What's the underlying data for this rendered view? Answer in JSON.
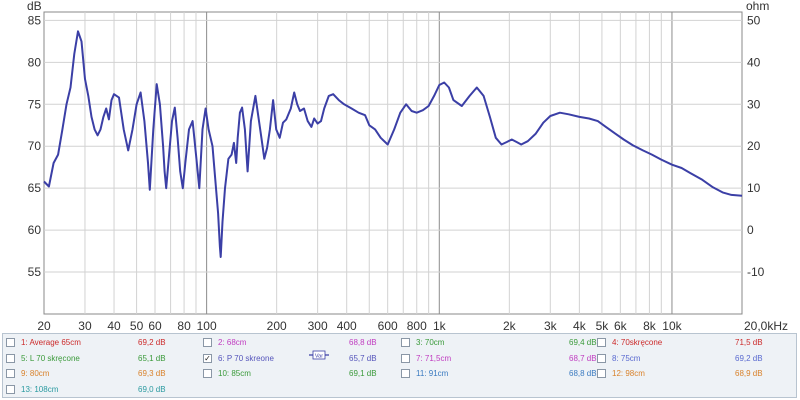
{
  "chart_data": {
    "type": "line",
    "left_axis_unit": "dB",
    "right_axis_unit": "ohm",
    "x_scale": "log",
    "xlim": [
      20,
      20000
    ],
    "ylim": [
      50,
      86
    ],
    "y_ticks": [
      55,
      60,
      65,
      70,
      75,
      80,
      85
    ],
    "right_ticks": [
      -10,
      0,
      10,
      20,
      30,
      40,
      50
    ],
    "right_range": [
      -20,
      52
    ],
    "x_ticks": [
      {
        "v": 20,
        "label": "20"
      },
      {
        "v": 30,
        "label": "30"
      },
      {
        "v": 40,
        "label": "40"
      },
      {
        "v": 50,
        "label": "50"
      },
      {
        "v": 60,
        "label": "60"
      },
      {
        "v": 80,
        "label": "80"
      },
      {
        "v": 100,
        "label": "100"
      },
      {
        "v": 200,
        "label": "200"
      },
      {
        "v": 300,
        "label": "300"
      },
      {
        "v": 400,
        "label": "400"
      },
      {
        "v": 600,
        "label": "600"
      },
      {
        "v": 800,
        "label": "800"
      },
      {
        "v": 1000,
        "label": "1k"
      },
      {
        "v": 2000,
        "label": "2k"
      },
      {
        "v": 3000,
        "label": "3k"
      },
      {
        "v": 4000,
        "label": "4k"
      },
      {
        "v": 5000,
        "label": "5k"
      },
      {
        "v": 6000,
        "label": "6k"
      },
      {
        "v": 8000,
        "label": "8k"
      },
      {
        "v": 10000,
        "label": "10k"
      },
      {
        "v": 20000,
        "label": "20,0kHz"
      }
    ],
    "grid": true,
    "series": [
      {
        "color": "#3b3fa6",
        "points": [
          [
            20,
            65.8
          ],
          [
            21,
            65.2
          ],
          [
            22,
            68
          ],
          [
            23,
            69
          ],
          [
            24,
            72
          ],
          [
            25,
            75
          ],
          [
            26,
            77
          ],
          [
            27,
            81
          ],
          [
            28,
            83.7
          ],
          [
            29,
            82.5
          ],
          [
            30,
            78
          ],
          [
            31,
            76
          ],
          [
            32,
            73.5
          ],
          [
            33,
            72
          ],
          [
            34,
            71.3
          ],
          [
            35,
            72
          ],
          [
            36,
            73.5
          ],
          [
            37,
            74.5
          ],
          [
            38,
            73.2
          ],
          [
            39,
            75.5
          ],
          [
            40,
            76.2
          ],
          [
            42,
            75.8
          ],
          [
            44,
            72
          ],
          [
            46,
            69.5
          ],
          [
            48,
            72
          ],
          [
            50,
            75
          ],
          [
            52,
            76.4
          ],
          [
            54,
            73
          ],
          [
            56,
            68
          ],
          [
            57,
            64.8
          ],
          [
            59,
            72
          ],
          [
            61,
            77.4
          ],
          [
            63,
            75
          ],
          [
            65,
            70
          ],
          [
            66,
            67
          ],
          [
            67,
            65
          ],
          [
            69,
            69
          ],
          [
            71,
            73
          ],
          [
            73,
            74.6
          ],
          [
            75,
            71
          ],
          [
            77,
            67
          ],
          [
            79,
            65
          ],
          [
            81,
            68
          ],
          [
            84,
            72
          ],
          [
            87,
            73
          ],
          [
            90,
            69
          ],
          [
            93,
            65
          ],
          [
            96,
            72
          ],
          [
            99,
            74.5
          ],
          [
            102,
            72
          ],
          [
            106,
            70
          ],
          [
            109,
            66
          ],
          [
            112,
            62
          ],
          [
            114,
            58
          ],
          [
            115,
            56.8
          ],
          [
            117,
            61
          ],
          [
            120,
            65
          ],
          [
            124,
            68.5
          ],
          [
            128,
            69
          ],
          [
            131,
            70.4
          ],
          [
            134,
            68
          ],
          [
            136,
            71
          ],
          [
            139,
            74
          ],
          [
            142,
            74.6
          ],
          [
            146,
            72
          ],
          [
            150,
            67
          ],
          [
            155,
            73
          ],
          [
            162,
            76
          ],
          [
            166,
            74
          ],
          [
            172,
            71
          ],
          [
            177,
            68.5
          ],
          [
            182,
            69.8
          ],
          [
            187,
            72
          ],
          [
            193,
            75.5
          ],
          [
            199,
            72
          ],
          [
            206,
            71
          ],
          [
            213,
            72.8
          ],
          [
            220,
            73.2
          ],
          [
            230,
            74.5
          ],
          [
            238,
            76.4
          ],
          [
            245,
            75
          ],
          [
            252,
            74.2
          ],
          [
            262,
            74.5
          ],
          [
            272,
            73
          ],
          [
            282,
            72.3
          ],
          [
            290,
            73.3
          ],
          [
            300,
            72.7
          ],
          [
            310,
            73
          ],
          [
            320,
            74.5
          ],
          [
            335,
            76
          ],
          [
            350,
            76.2
          ],
          [
            370,
            75.5
          ],
          [
            390,
            75
          ],
          [
            420,
            74.5
          ],
          [
            450,
            74
          ],
          [
            480,
            73.7
          ],
          [
            500,
            72.5
          ],
          [
            530,
            72
          ],
          [
            560,
            71
          ],
          [
            600,
            70.2
          ],
          [
            640,
            72
          ],
          [
            680,
            74
          ],
          [
            720,
            75
          ],
          [
            760,
            74.2
          ],
          [
            800,
            74
          ],
          [
            850,
            74.3
          ],
          [
            900,
            74.8
          ],
          [
            950,
            76
          ],
          [
            1000,
            77.3
          ],
          [
            1050,
            77.6
          ],
          [
            1100,
            77
          ],
          [
            1150,
            75.5
          ],
          [
            1250,
            74.8
          ],
          [
            1350,
            76
          ],
          [
            1450,
            77
          ],
          [
            1550,
            76
          ],
          [
            1650,
            73.5
          ],
          [
            1750,
            71
          ],
          [
            1850,
            70.2
          ],
          [
            1950,
            70.5
          ],
          [
            2050,
            70.8
          ],
          [
            2150,
            70.5
          ],
          [
            2250,
            70.2
          ],
          [
            2400,
            70.6
          ],
          [
            2600,
            71.5
          ],
          [
            2800,
            72.8
          ],
          [
            3000,
            73.6
          ],
          [
            3300,
            74
          ],
          [
            3600,
            73.8
          ],
          [
            4000,
            73.5
          ],
          [
            4400,
            73.3
          ],
          [
            4800,
            73
          ],
          [
            5200,
            72.3
          ],
          [
            5700,
            71.5
          ],
          [
            6200,
            70.8
          ],
          [
            6800,
            70.1
          ],
          [
            7500,
            69.5
          ],
          [
            8200,
            69
          ],
          [
            9000,
            68.4
          ],
          [
            10000,
            67.8
          ],
          [
            11000,
            67.4
          ],
          [
            12000,
            66.8
          ],
          [
            13500,
            66
          ],
          [
            15000,
            65.1
          ],
          [
            16500,
            64.5
          ],
          [
            18000,
            64.2
          ],
          [
            20000,
            64.1
          ]
        ]
      }
    ]
  },
  "legend": [
    {
      "col": 0,
      "row": 0,
      "checked": false,
      "label": "1: Average 65cm",
      "value": "69,2 dB",
      "color": "#cc2a2a"
    },
    {
      "col": 1,
      "row": 0,
      "checked": false,
      "label": "2: 68cm",
      "value": "68,8 dB",
      "color": "#c03cc0"
    },
    {
      "col": 2,
      "row": 0,
      "checked": false,
      "label": "3: 70cm",
      "value": "69,4 dB",
      "color": "#3a9a3a"
    },
    {
      "col": 3,
      "row": 0,
      "checked": false,
      "label": "4: 70skręcone",
      "value": "71,5 dB",
      "color": "#cc2a2a"
    },
    {
      "col": 0,
      "row": 1,
      "checked": false,
      "label": "5: L 70 skręcone",
      "value": "65,1 dB",
      "color": "#3a9a3a"
    },
    {
      "col": 1,
      "row": 1,
      "checked": true,
      "label": "6: P 70 skreone",
      "value": "65,7 dB",
      "color": "#5555bb"
    },
    {
      "col": 2,
      "row": 1,
      "checked": false,
      "label": "7: 71,5cm",
      "value": "68,7 dB",
      "color": "#c03cc0"
    },
    {
      "col": 3,
      "row": 1,
      "checked": false,
      "label": "8: 75cm",
      "value": "69,2 dB",
      "color": "#5a6ad0"
    },
    {
      "col": 0,
      "row": 2,
      "checked": false,
      "label": "9: 80cm",
      "value": "69,3 dB",
      "color": "#d9822b"
    },
    {
      "col": 1,
      "row": 2,
      "checked": false,
      "label": "10: 85cm",
      "value": "69,1 dB",
      "color": "#3a9a3a"
    },
    {
      "col": 2,
      "row": 2,
      "checked": false,
      "label": "11: 91cm",
      "value": "68,8 dB",
      "color": "#3a7ac0"
    },
    {
      "col": 3,
      "row": 2,
      "checked": false,
      "label": "12: 98cm",
      "value": "68,9 dB",
      "color": "#d9822b"
    },
    {
      "col": 0,
      "row": 3,
      "checked": false,
      "label": "13: 108cm",
      "value": "69,0 dB",
      "color": "#2a9aa0"
    }
  ],
  "var_icon_label": "Var"
}
